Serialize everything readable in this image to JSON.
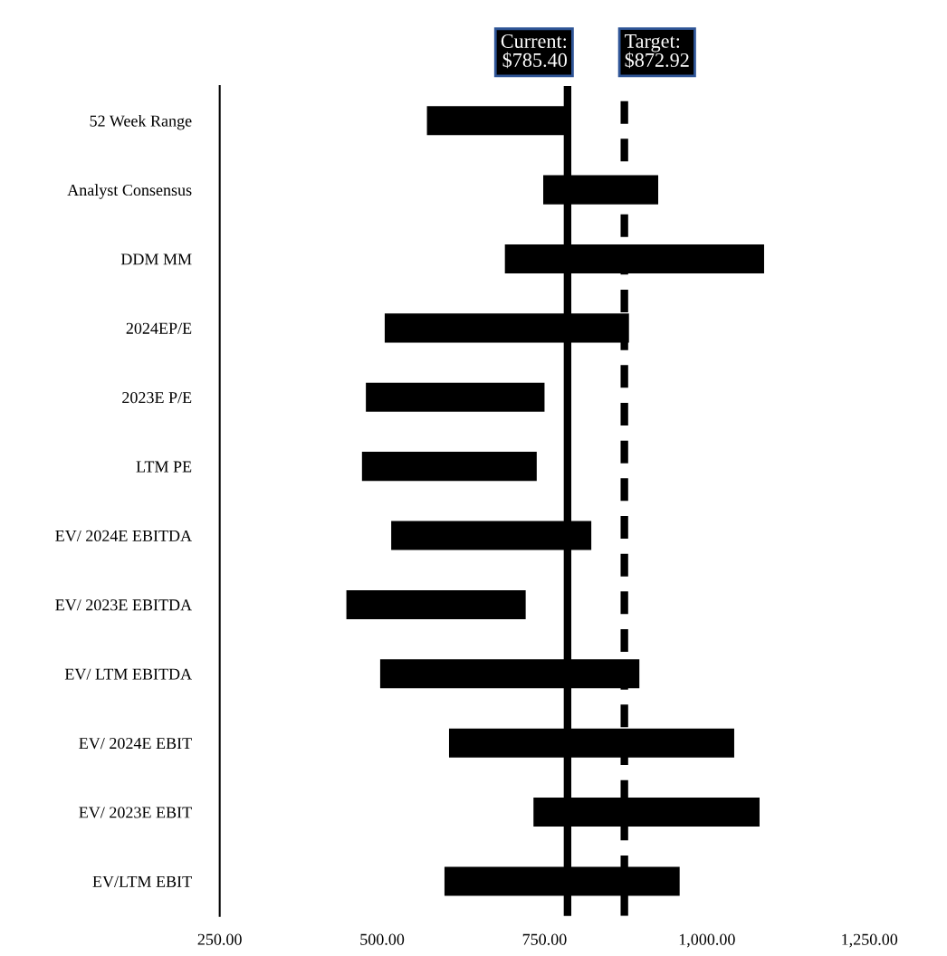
{
  "chart_data": {
    "type": "bar",
    "orientation": "horizontal",
    "categories": [
      "52 Week Range",
      "Analyst Consensus",
      "DDM MM",
      "2024EP/E",
      "2023E P/E",
      "LTM PE",
      "EV/ 2024E EBITDA",
      "EV/ 2023E EBITDA",
      "EV/ LTM EBITDA",
      "EV/ 2024E EBIT",
      "EV/ 2023E EBIT",
      "EV/LTM EBIT"
    ],
    "base": [
      569,
      748,
      689,
      504,
      475,
      469,
      514,
      445,
      497,
      603,
      733,
      596
    ],
    "values": [
      217,
      177,
      399,
      376,
      275,
      269,
      308,
      276,
      399,
      439,
      348,
      362
    ],
    "color": "#000000",
    "xlim": [
      250,
      1250
    ],
    "xticks": [
      {
        "value": 250,
        "label": "250.00"
      },
      {
        "value": 500,
        "label": "500.00"
      },
      {
        "value": 750,
        "label": "750.00"
      },
      {
        "value": 1000,
        "label": "1,000.00"
      },
      {
        "value": 1250,
        "label": "1,250.00"
      }
    ],
    "ref_lines": [
      {
        "axis": "x",
        "value": 785.4,
        "label": "Current:\n$785.40",
        "color": "#000000",
        "line_style": "solid"
      },
      {
        "axis": "x",
        "value": 872.92,
        "label": "Target:\n$872.92",
        "color": "#000000",
        "line_style": "dashed"
      }
    ],
    "grid": false,
    "legend": false
  }
}
